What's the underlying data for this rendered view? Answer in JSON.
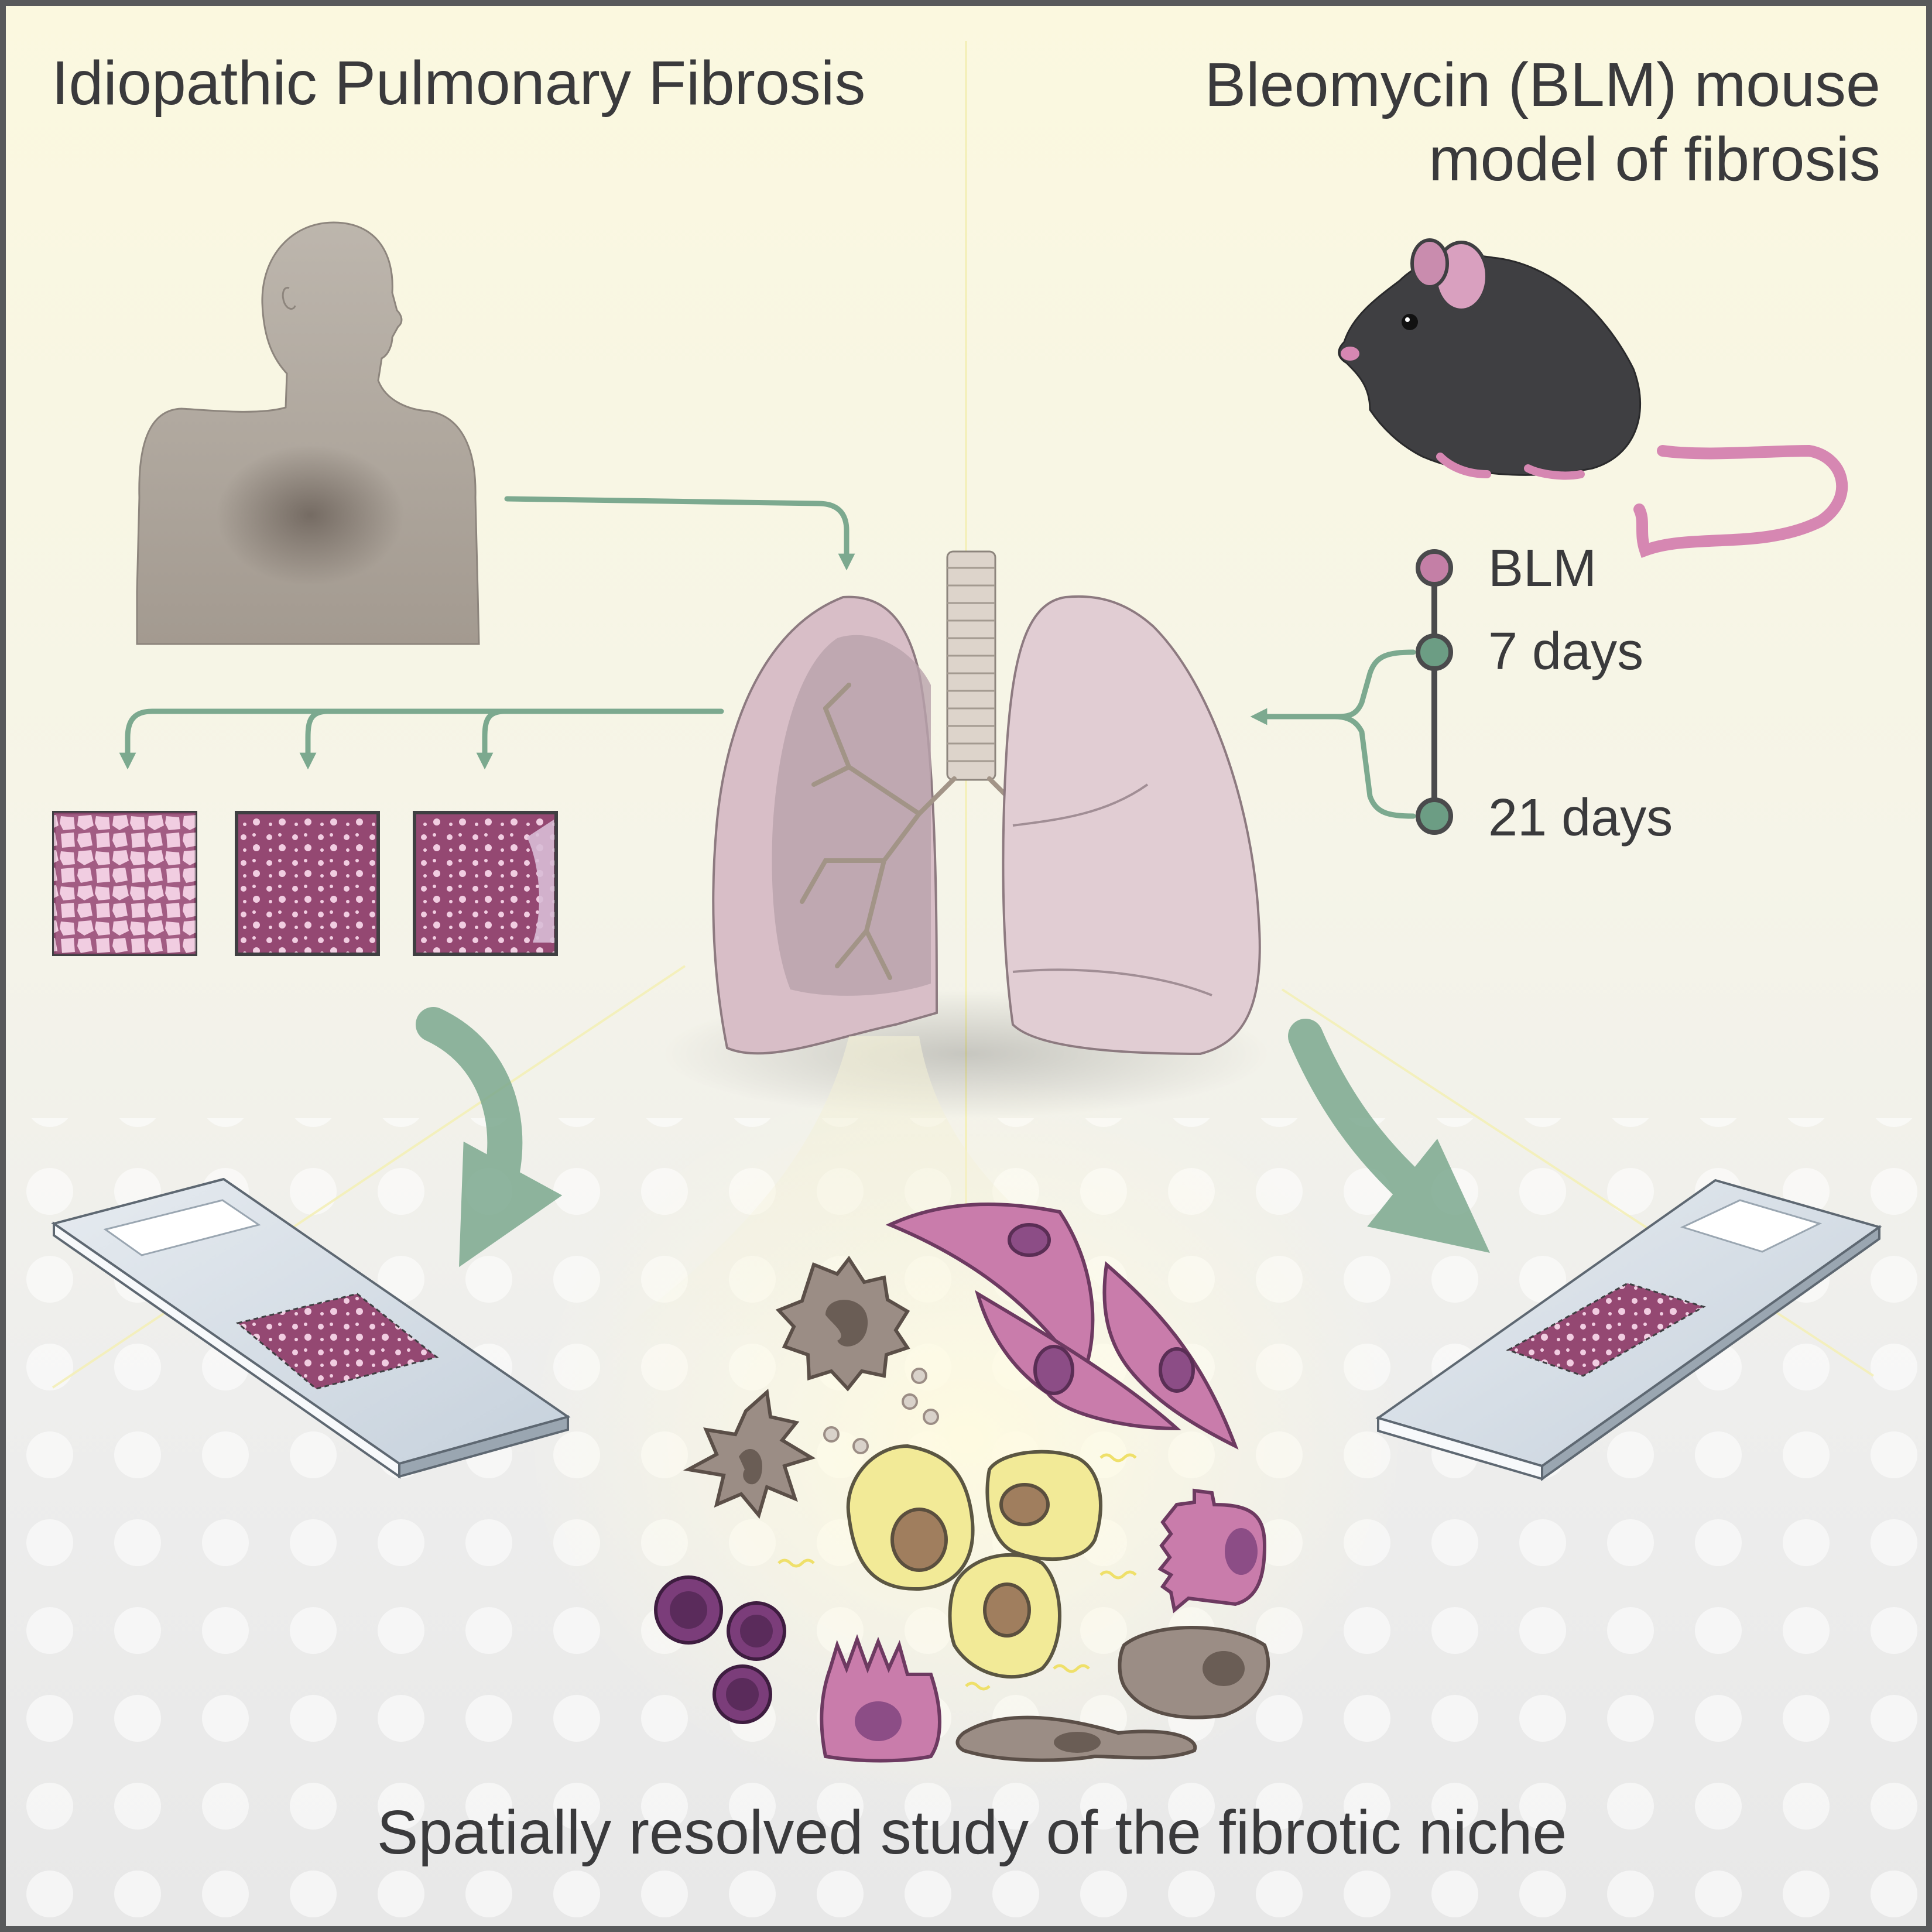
{
  "title_left": "Idiopathic Pulmonary Fibrosis",
  "title_right_line1": "Bleomycin (BLM) mouse",
  "title_right_line2": "model of fibrosis",
  "timeline": {
    "blm": "BLM",
    "day7": "7 days",
    "day21": "21 days"
  },
  "caption": "Spatially resolved study of the fibrotic niche",
  "colors": {
    "text": "#3a3a3c",
    "arrow_green": "#7ca98f",
    "timeline_green": "#6c9d84",
    "blm_pink": "#c47fa6",
    "tissue_magenta": "#944872",
    "tissue_light": "#f1cde1",
    "lung": "#d8bec7",
    "mouse": "#3f3f42",
    "human": "#b3aba2",
    "slide": "#d3dbe3",
    "fibroblast": "#c97cab",
    "epithelial": "#f2ea97",
    "macrophage": "#9b8d85",
    "lymphocyte": "#7b3d7a",
    "frame": "#58595b"
  },
  "icons": [
    "human-silhouette-icon",
    "lungs-icon",
    "mouse-icon",
    "tissue-section-icon",
    "microscope-slide-icon",
    "cell-cluster-icon"
  ]
}
